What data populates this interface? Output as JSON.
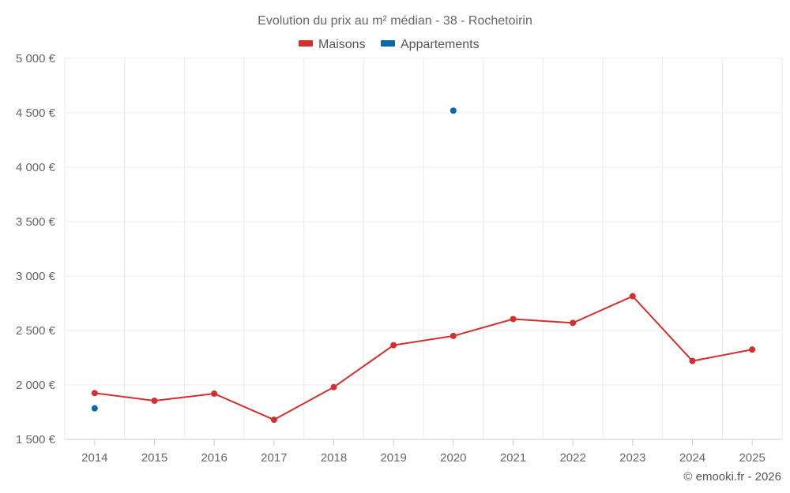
{
  "chart_data": {
    "type": "line",
    "title": "Evolution du prix au m² médian - 38 - Rochetoirin",
    "categories": [
      "2014",
      "2015",
      "2016",
      "2017",
      "2018",
      "2019",
      "2020",
      "2021",
      "2022",
      "2023",
      "2024",
      "2025"
    ],
    "series": [
      {
        "name": "Maisons",
        "color": "#d32f2f",
        "values": [
          1925,
          1855,
          1920,
          1680,
          1980,
          2365,
          2450,
          2605,
          2570,
          2815,
          2220,
          2325
        ]
      },
      {
        "name": "Appartements",
        "color": "#0868a8",
        "values": [
          1785,
          null,
          null,
          null,
          null,
          null,
          4520,
          null,
          null,
          null,
          null,
          null
        ]
      }
    ],
    "ylim": [
      1500,
      5000
    ],
    "yticks": [
      1500,
      2000,
      2500,
      3000,
      3500,
      4000,
      4500,
      5000
    ],
    "ytick_labels": [
      "1 500 €",
      "2 000 €",
      "2 500 €",
      "3 000 €",
      "3 500 €",
      "4 000 €",
      "4 500 €",
      "5 000 €"
    ],
    "xlabel": "",
    "ylabel": "",
    "grid": true,
    "legend": "top-center"
  },
  "credit": "© emooki.fr - 2026"
}
